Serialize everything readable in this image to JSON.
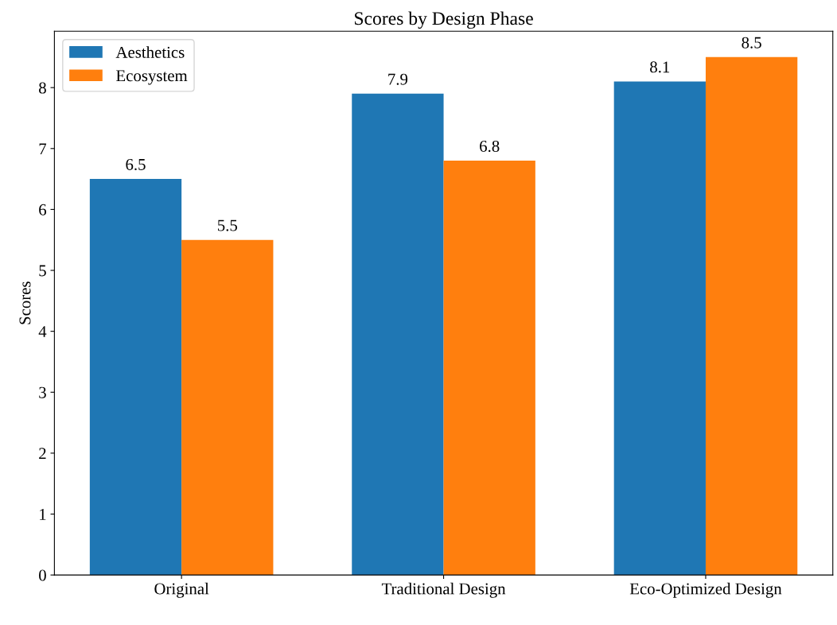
{
  "chart_data": {
    "type": "bar",
    "title": "Scores by Design Phase",
    "ylabel": "Scores",
    "categories": [
      "Original",
      "Traditional Design",
      "Eco-Optimized Design"
    ],
    "series": [
      {
        "name": "Aesthetics",
        "color": "#1f77b4",
        "values": [
          6.5,
          7.9,
          8.1
        ]
      },
      {
        "name": "Ecosystem",
        "color": "#ff7f0e",
        "values": [
          5.5,
          6.8,
          8.5
        ]
      }
    ],
    "ylim": [
      0,
      8.925
    ],
    "yticks": [
      0,
      1,
      2,
      3,
      4,
      5,
      6,
      7,
      8
    ],
    "data_labels": true,
    "legend": "top left",
    "grid": false
  }
}
